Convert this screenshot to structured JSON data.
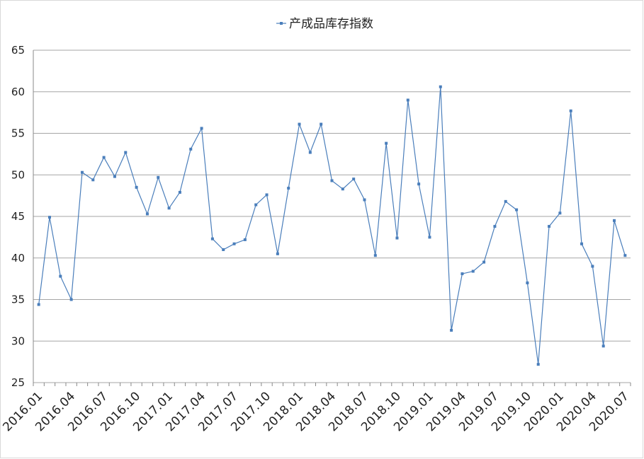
{
  "chart_data": {
    "type": "line",
    "categories": [
      "2016.01",
      null,
      null,
      "2016.04",
      null,
      null,
      "2016.07",
      null,
      null,
      "2016.10",
      null,
      null,
      "2017.01",
      null,
      null,
      "2017.04",
      null,
      null,
      "2017.07",
      null,
      null,
      "2017.10",
      null,
      null,
      "2018.01",
      null,
      null,
      "2018.04",
      null,
      null,
      "2018.07",
      null,
      null,
      "2018.10",
      null,
      null,
      "2019.01",
      null,
      null,
      "2019.04",
      null,
      null,
      "2019.07",
      null,
      null,
      "2019.10",
      null,
      null,
      "2020.01",
      null,
      null,
      "2020.04",
      null,
      null,
      "2020.07"
    ],
    "series": [
      {
        "name": "产成品库存指数",
        "color": "#4a7ebb",
        "values": [
          34.4,
          44.9,
          37.8,
          35.0,
          50.3,
          49.4,
          52.1,
          49.8,
          52.7,
          48.5,
          45.3,
          49.7,
          46.0,
          47.9,
          53.1,
          55.6,
          42.3,
          41.0,
          41.7,
          42.2,
          46.4,
          47.6,
          40.5,
          48.4,
          56.1,
          52.7,
          56.1,
          49.3,
          48.3,
          49.5,
          47.0,
          40.3,
          53.8,
          42.4,
          59.0,
          48.9,
          42.5,
          60.6,
          31.3,
          38.1,
          38.4,
          39.5,
          43.8,
          46.8,
          45.8,
          37.0,
          27.2,
          43.8,
          45.4,
          57.7,
          41.7,
          39.0,
          29.4,
          44.5,
          40.3
        ]
      }
    ],
    "ylim": [
      25,
      65
    ],
    "yticks": [
      25,
      30,
      35,
      40,
      45,
      50,
      55,
      60,
      65
    ],
    "grid": true,
    "legend": "top"
  }
}
